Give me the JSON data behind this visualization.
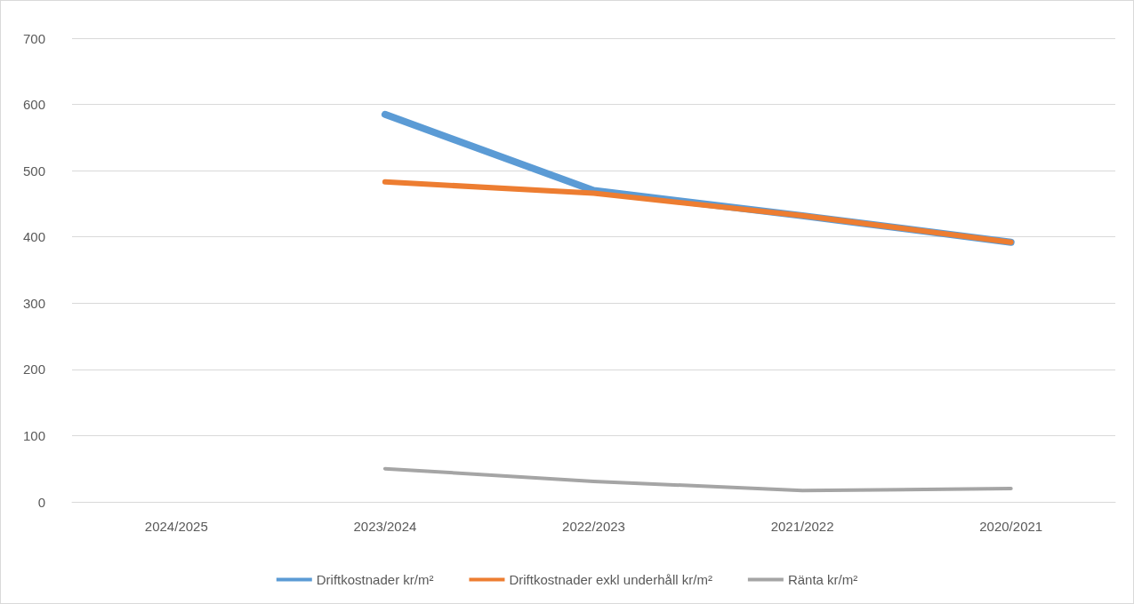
{
  "chart_data": {
    "type": "line",
    "categories": [
      "2024/2025",
      "2023/2024",
      "2022/2023",
      "2021/2022",
      "2020/2021"
    ],
    "series": [
      {
        "name": "Driftkostnader kr/m²",
        "color": "#5b9bd5",
        "values": [
          null,
          585,
          470,
          432,
          392
        ]
      },
      {
        "name": "Driftkostnader exkl underhåll kr/m²",
        "color": "#ed7d31",
        "values": [
          null,
          483,
          466,
          432,
          392
        ]
      },
      {
        "name": "Ränta kr/m²",
        "color": "#a5a5a5",
        "values": [
          null,
          50,
          31,
          17,
          20
        ]
      }
    ],
    "ylim": [
      0,
      700
    ],
    "yticks": [
      0,
      100,
      200,
      300,
      400,
      500,
      600,
      700
    ],
    "grid": "y",
    "legend": "bottom",
    "marker": "none",
    "line_style": "solid"
  }
}
